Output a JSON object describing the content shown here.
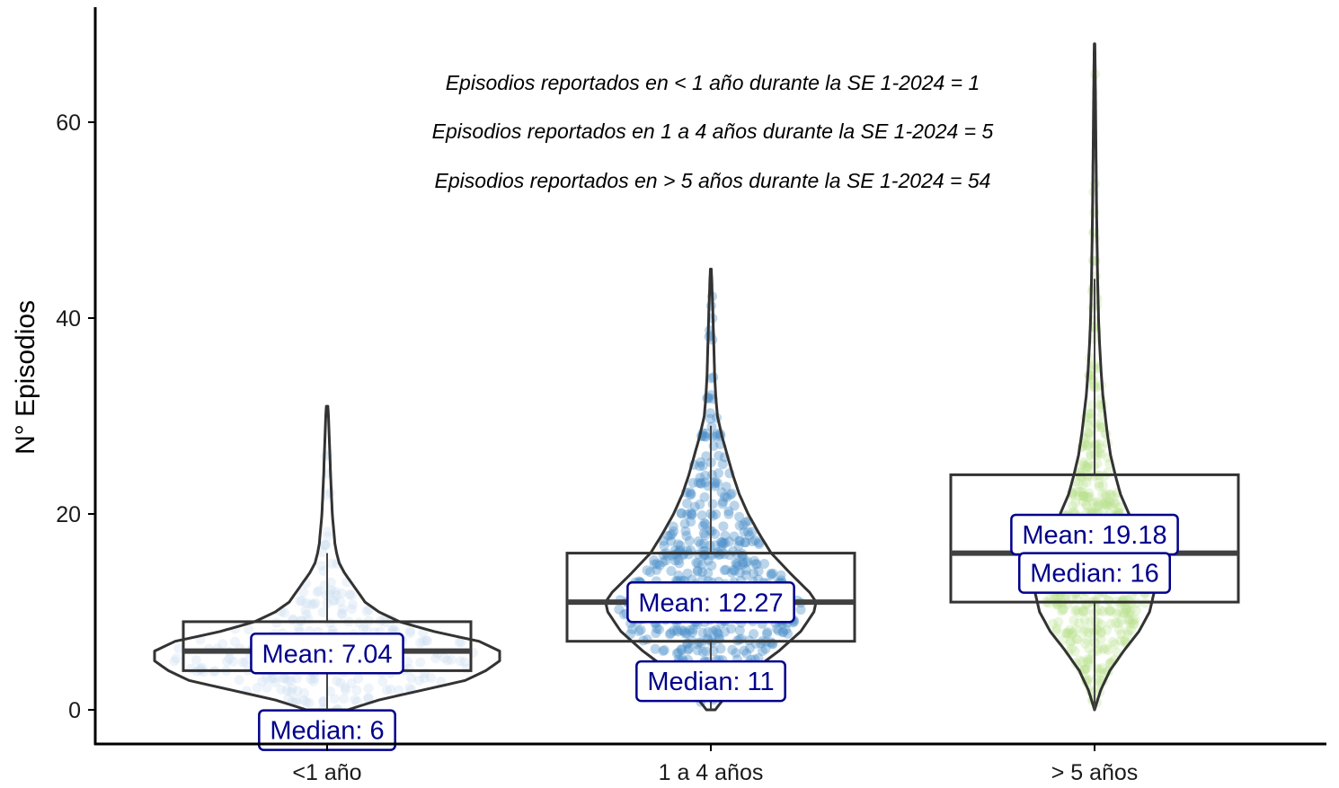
{
  "chart_data": {
    "type": "violin",
    "ylabel": "N° Episodios",
    "xlabel": "",
    "ylim": [
      -3.5,
      71
    ],
    "yticks": [
      0,
      20,
      40,
      60
    ],
    "grid": false,
    "legend": "none",
    "categories": [
      "<1 año",
      "1 a 4 años",
      "> 5 años"
    ],
    "colors": [
      "#c6dbef",
      "#4a8ec8",
      "#b8e08e"
    ],
    "series": [
      {
        "category": "<1 año",
        "min": 0,
        "max": 31,
        "box": {
          "q1": 4,
          "median": 6,
          "q3": 9,
          "whisker_low": 0,
          "whisker_high": 16
        },
        "mean": 7.04,
        "mean_label": "Mean: 7.04",
        "median_label": "Median: 6",
        "density": [
          [
            0,
            0.12
          ],
          [
            1,
            0.3
          ],
          [
            2,
            0.55
          ],
          [
            3,
            0.8
          ],
          [
            4,
            0.92
          ],
          [
            5,
            1.0
          ],
          [
            6,
            1.0
          ],
          [
            7,
            0.88
          ],
          [
            8,
            0.62
          ],
          [
            9,
            0.42
          ],
          [
            10,
            0.3
          ],
          [
            11,
            0.22
          ],
          [
            12,
            0.18
          ],
          [
            13,
            0.14
          ],
          [
            14,
            0.1
          ],
          [
            15,
            0.07
          ],
          [
            16,
            0.055
          ],
          [
            17,
            0.045
          ],
          [
            18,
            0.04
          ],
          [
            19,
            0.035
          ],
          [
            20,
            0.03
          ],
          [
            22,
            0.025
          ],
          [
            24,
            0.02
          ],
          [
            26,
            0.016
          ],
          [
            28,
            0.012
          ],
          [
            30,
            0.008
          ],
          [
            31,
            0.004
          ]
        ]
      },
      {
        "category": "1 a 4 años",
        "min": 0,
        "max": 45,
        "box": {
          "q1": 7,
          "median": 11,
          "q3": 16,
          "whisker_low": 0,
          "whisker_high": 29
        },
        "mean": 12.27,
        "mean_label": "Mean: 12.27",
        "median_label": "Median: 11",
        "density": [
          [
            0,
            0.04
          ],
          [
            2,
            0.18
          ],
          [
            4,
            0.38
          ],
          [
            6,
            0.62
          ],
          [
            8,
            0.82
          ],
          [
            10,
            0.94
          ],
          [
            11,
            0.96
          ],
          [
            12,
            0.9
          ],
          [
            14,
            0.72
          ],
          [
            16,
            0.55
          ],
          [
            18,
            0.44
          ],
          [
            20,
            0.34
          ],
          [
            22,
            0.26
          ],
          [
            24,
            0.2
          ],
          [
            26,
            0.15
          ],
          [
            28,
            0.1
          ],
          [
            30,
            0.06
          ],
          [
            32,
            0.045
          ],
          [
            34,
            0.035
          ],
          [
            36,
            0.03
          ],
          [
            38,
            0.025
          ],
          [
            40,
            0.02
          ],
          [
            42,
            0.014
          ],
          [
            44,
            0.008
          ],
          [
            45,
            0.004
          ]
        ]
      },
      {
        "category": "> 5 años",
        "min": 0,
        "max": 68,
        "box": {
          "q1": 11,
          "median": 16,
          "q3": 24,
          "whisker_low": 0,
          "whisker_high": 44
        },
        "mean": 19.18,
        "mean_label": "Mean: 19.18",
        "median_label": "Median: 16",
        "density": [
          [
            0,
            0.0
          ],
          [
            2,
            0.08
          ],
          [
            4,
            0.2
          ],
          [
            6,
            0.38
          ],
          [
            8,
            0.58
          ],
          [
            10,
            0.72
          ],
          [
            12,
            0.78
          ],
          [
            14,
            0.78
          ],
          [
            16,
            0.72
          ],
          [
            18,
            0.6
          ],
          [
            20,
            0.45
          ],
          [
            22,
            0.34
          ],
          [
            24,
            0.27
          ],
          [
            26,
            0.21
          ],
          [
            28,
            0.17
          ],
          [
            30,
            0.14
          ],
          [
            32,
            0.11
          ],
          [
            34,
            0.09
          ],
          [
            36,
            0.075
          ],
          [
            38,
            0.062
          ],
          [
            40,
            0.052
          ],
          [
            44,
            0.04
          ],
          [
            48,
            0.032
          ],
          [
            52,
            0.025
          ],
          [
            56,
            0.02
          ],
          [
            60,
            0.015
          ],
          [
            64,
            0.01
          ],
          [
            68,
            0.004
          ]
        ]
      }
    ],
    "annotations": [
      "Episodios reportados en < 1 año durante la SE 1-2024 = 1",
      "Episodios reportados en 1 a 4 años durante la SE 1-2024  = 5",
      "Episodios reportados en > 5 años durante la SE 1-2024 = 54"
    ]
  }
}
